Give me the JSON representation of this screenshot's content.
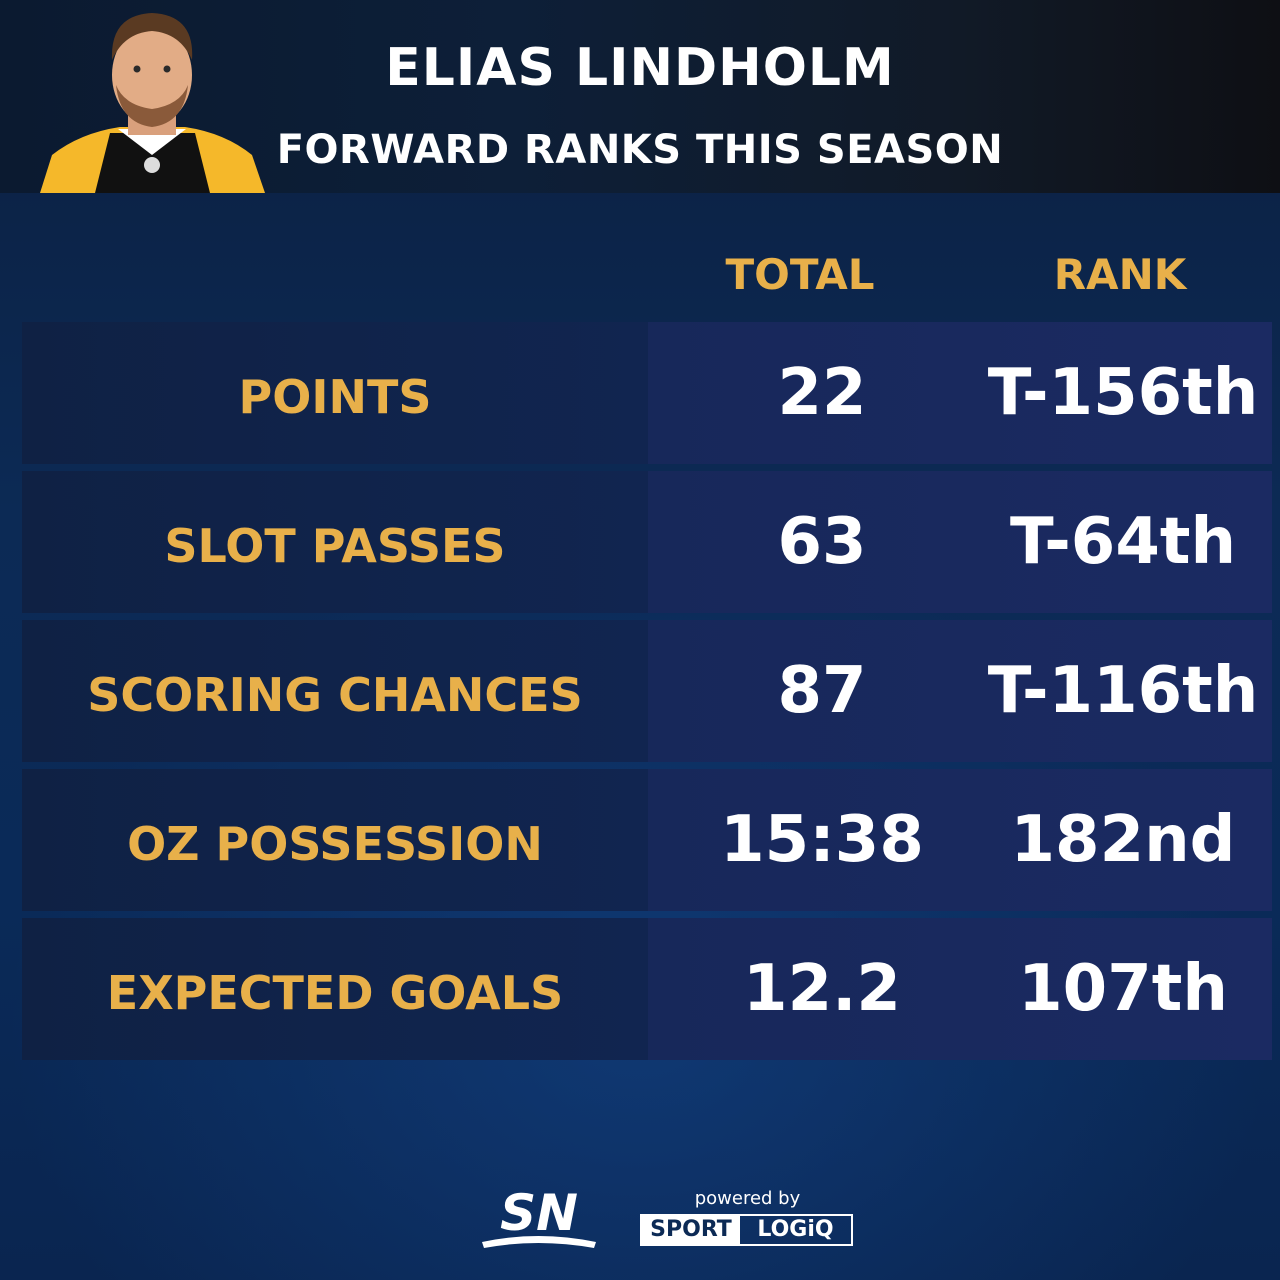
{
  "header": {
    "player_name": "ELIAS LINDHOLM",
    "subtitle": "FORWARD RANKS THIS SEASON"
  },
  "columns": {
    "total": "TOTAL",
    "rank": "RANK"
  },
  "rows": [
    {
      "label": "POINTS",
      "total": "22",
      "rank": "T-156th"
    },
    {
      "label": "SLOT PASSES",
      "total": "63",
      "rank": "T-64th"
    },
    {
      "label": "SCORING CHANCES",
      "total": "87",
      "rank": "T-116th"
    },
    {
      "label": "OZ POSSESSION",
      "total": "15:38",
      "rank": "182nd"
    },
    {
      "label": "EXPECTED GOALS",
      "total": "12.2",
      "rank": "107th"
    }
  ],
  "footer": {
    "sn_logo": "SN",
    "powered_by": "powered by",
    "sportlogiq_left": "SPORT",
    "sportlogiq_right": "LOGiQ"
  },
  "colors": {
    "accent_gold": "#e8b04a",
    "background_navy": "#0c2a55",
    "text_white": "#ffffff"
  }
}
